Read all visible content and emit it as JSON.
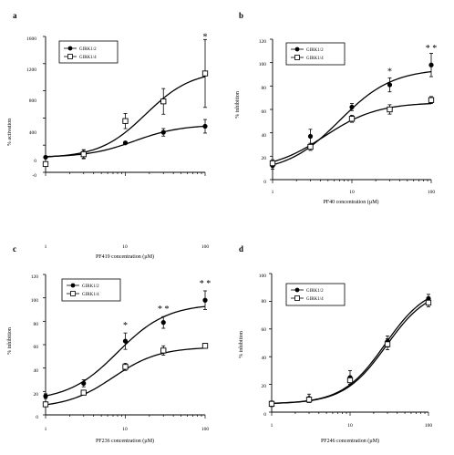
{
  "chart_data": [
    {
      "type": "scatter",
      "panel": "a",
      "xlabel": "PF419 concentration (µM)",
      "ylabel": "% activation",
      "x_scale": "log",
      "xlim": [
        1,
        100
      ],
      "ylim": [
        -200,
        1600
      ],
      "x_ticks": [
        "1",
        "10",
        "100"
      ],
      "y_ticks": [
        "-0",
        "0",
        "400",
        "800",
        "1200",
        "1600"
      ],
      "legend_position": "top-left",
      "series": [
        {
          "name": "GIRK1/2",
          "marker": "filled-circle",
          "x": [
            1,
            3,
            10,
            30,
            100
          ],
          "y": [
            0,
            40,
            190,
            330,
            410
          ],
          "err": [
            0,
            60,
            20,
            50,
            90
          ],
          "fit": {
            "bottom": 0,
            "top": 430,
            "ec50": 13,
            "hill": 1.5
          }
        },
        {
          "name": "GIRK1/4",
          "marker": "open-square",
          "x": [
            1,
            3,
            10,
            30,
            100
          ],
          "y": [
            -90,
            40,
            480,
            740,
            1110
          ],
          "err": [
            0,
            50,
            100,
            170,
            450
          ],
          "fit": {
            "bottom": -10,
            "top": 1150,
            "ec50": 18,
            "hill": 1.5
          }
        }
      ],
      "annotations": [
        {
          "text": "*",
          "x": 100,
          "y": 1560
        }
      ]
    },
    {
      "type": "scatter",
      "panel": "b",
      "xlabel": "PF40 concentration (µM)",
      "ylabel": "% inhibition",
      "x_scale": "log",
      "xlim": [
        1,
        100
      ],
      "ylim": [
        0,
        120
      ],
      "x_ticks": [
        "1",
        "10",
        "100"
      ],
      "y_ticks": [
        "0",
        "20",
        "40",
        "60",
        "80",
        "100",
        "120"
      ],
      "legend_position": "top-left",
      "series": [
        {
          "name": "GIRK1/2",
          "marker": "filled-circle",
          "x": [
            1,
            3,
            10,
            30,
            100
          ],
          "y": [
            12,
            37,
            62,
            81,
            98
          ],
          "err": [
            3,
            6,
            3,
            6,
            10
          ],
          "fit": {
            "bottom": 6,
            "top": 95,
            "ec50": 7,
            "hill": 1.3
          }
        },
        {
          "name": "GIRK1/4",
          "marker": "open-square",
          "x": [
            1,
            3,
            10,
            30,
            100
          ],
          "y": [
            14,
            28,
            52,
            60,
            68
          ],
          "err": [
            3,
            3,
            3,
            4,
            3
          ],
          "fit": {
            "bottom": 8,
            "top": 66,
            "ec50": 4.5,
            "hill": 1.3
          }
        }
      ],
      "annotations": [
        {
          "text": "*",
          "x": 30,
          "y": 90
        },
        {
          "text": "* *",
          "x": 100,
          "y": 110
        }
      ]
    },
    {
      "type": "scatter",
      "panel": "c",
      "xlabel": "PF236 concentration (µM)",
      "ylabel": "% inhibition",
      "x_scale": "log",
      "xlim": [
        1,
        100
      ],
      "ylim": [
        0,
        120
      ],
      "x_ticks": [
        "1",
        "10",
        "100"
      ],
      "y_ticks": [
        "0",
        "20",
        "40",
        "60",
        "80",
        "100",
        "120"
      ],
      "legend_position": "top-left",
      "series": [
        {
          "name": "GIRK1/2",
          "marker": "filled-circle",
          "x": [
            1,
            3,
            10,
            30,
            100
          ],
          "y": [
            16,
            27,
            63,
            79,
            98
          ],
          "err": [
            2,
            3,
            7,
            5,
            8
          ],
          "fit": {
            "bottom": 12,
            "top": 95,
            "ec50": 8,
            "hill": 1.4
          }
        },
        {
          "name": "GIRK1/4",
          "marker": "open-square",
          "x": [
            1,
            3,
            10,
            30,
            100
          ],
          "y": [
            9,
            19,
            41,
            55,
            59
          ],
          "err": [
            2,
            2,
            3,
            4,
            2
          ],
          "fit": {
            "bottom": 6,
            "top": 58,
            "ec50": 7,
            "hill": 1.5
          }
        }
      ],
      "annotations": [
        {
          "text": "*",
          "x": 10,
          "y": 74
        },
        {
          "text": "* *",
          "x": 30,
          "y": 88
        },
        {
          "text": "* *",
          "x": 100,
          "y": 110
        }
      ]
    },
    {
      "type": "scatter",
      "panel": "d",
      "xlabel": "PF246 concentration (µM)",
      "ylabel": "% inhibition",
      "x_scale": "log",
      "xlim": [
        1,
        100
      ],
      "ylim": [
        0,
        100
      ],
      "x_ticks": [
        "1",
        "10",
        "100"
      ],
      "y_ticks": [
        "0",
        "20",
        "40",
        "60",
        "80",
        "100"
      ],
      "legend_position": "top-left",
      "series": [
        {
          "name": "GIRK1/2",
          "marker": "filled-circle",
          "x": [
            1,
            3,
            10,
            30,
            100
          ],
          "y": [
            6,
            10,
            25,
            51,
            82
          ],
          "err": [
            2,
            3,
            5,
            4,
            3
          ],
          "fit": {
            "bottom": 6,
            "top": 92,
            "ec50": 28,
            "hill": 1.6
          }
        },
        {
          "name": "GIRK1/4",
          "marker": "open-square",
          "x": [
            1,
            3,
            10,
            30,
            100
          ],
          "y": [
            6,
            9,
            23,
            49,
            79
          ],
          "err": [
            1,
            2,
            3,
            4,
            3
          ],
          "fit": {
            "bottom": 6,
            "top": 90,
            "ec50": 29,
            "hill": 1.6
          }
        }
      ],
      "annotations": []
    }
  ]
}
